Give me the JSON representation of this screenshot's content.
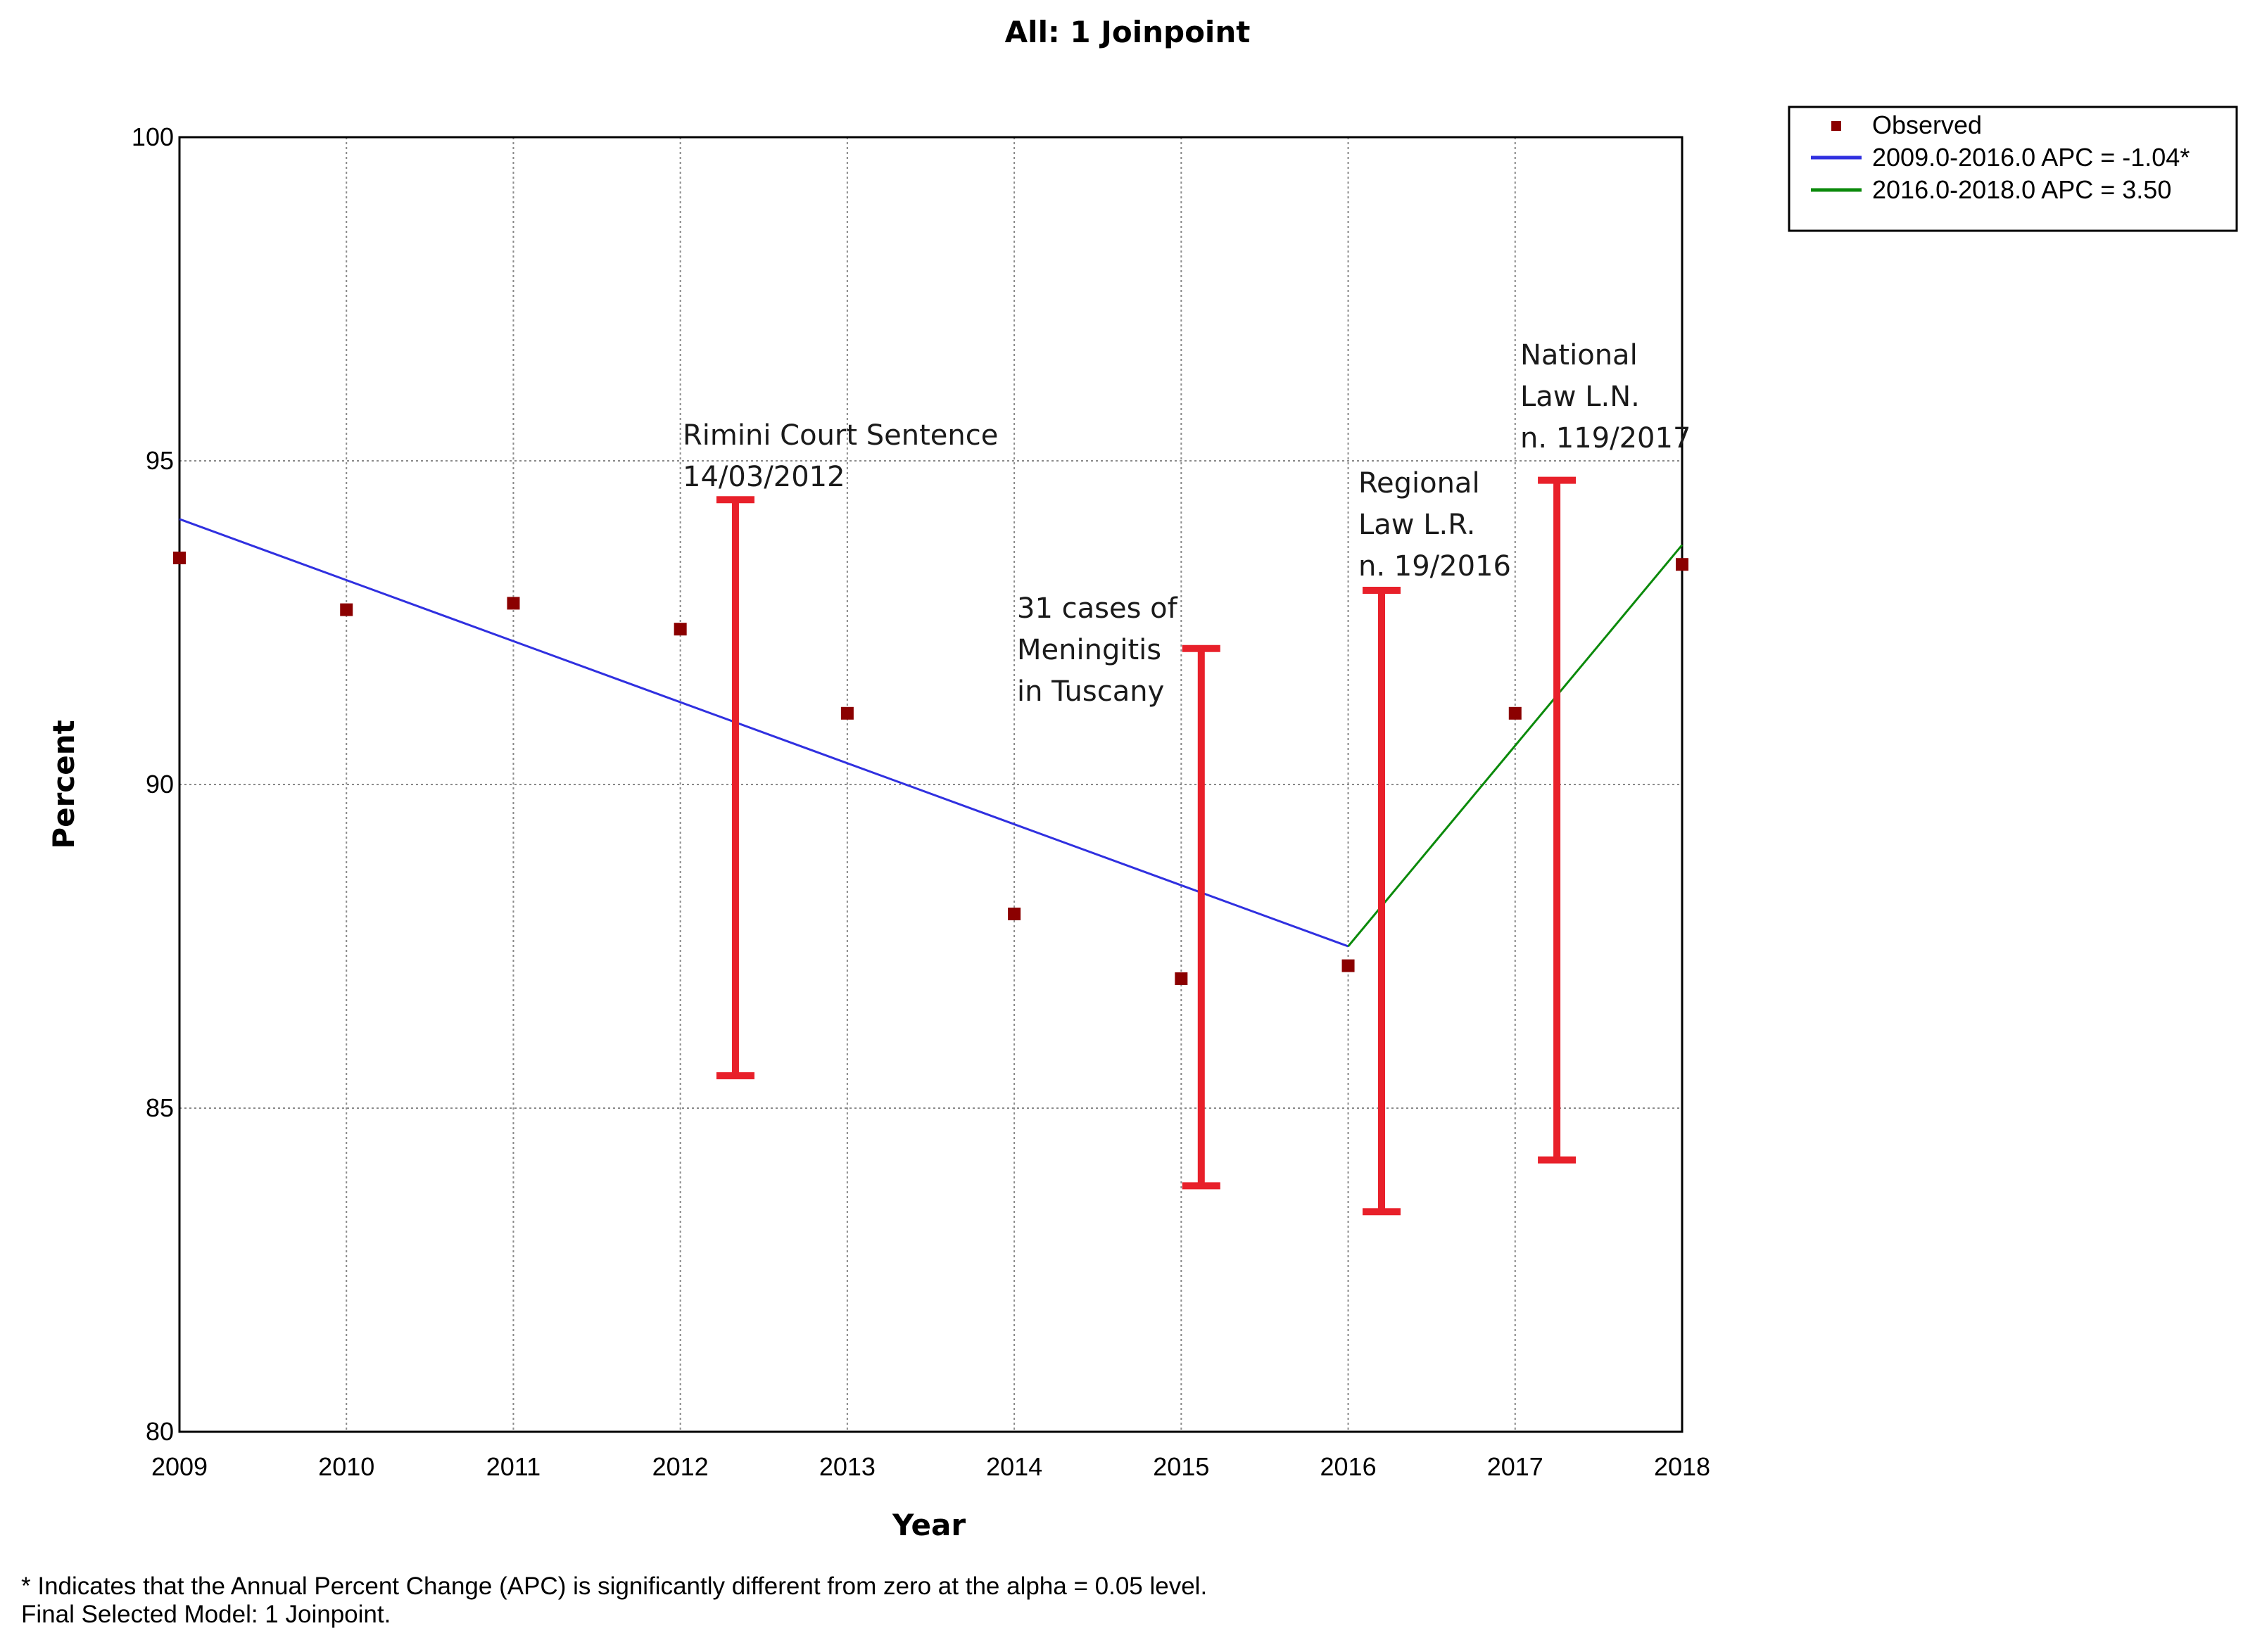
{
  "chart_data": {
    "type": "line",
    "title": "All: 1 Joinpoint",
    "xlabel": "Year",
    "ylabel": "Percent",
    "xlim": [
      2009,
      2018
    ],
    "ylim": [
      80,
      100
    ],
    "x_ticks": [
      "2009",
      "2010",
      "2011",
      "2012",
      "2013",
      "2014",
      "2015",
      "2016",
      "2017",
      "2018"
    ],
    "y_ticks": [
      "80",
      "85",
      "90",
      "95",
      "100"
    ],
    "grid": true,
    "legend_position": "outside-top-right",
    "series": [
      {
        "name": "Observed",
        "kind": "scatter",
        "color": "#8b0000",
        "x": [
          2009,
          2010,
          2011,
          2012,
          2013,
          2014,
          2015,
          2016,
          2017,
          2018
        ],
        "y": [
          93.5,
          92.7,
          92.8,
          92.4,
          91.1,
          88.0,
          87.0,
          87.2,
          91.1,
          93.4
        ]
      },
      {
        "name": "2009.0-2016.0 APC  = -1.04*",
        "kind": "line",
        "color": "#3030e0",
        "x": [
          2009,
          2016
        ],
        "y": [
          94.1,
          87.5
        ]
      },
      {
        "name": "2016.0-2018.0 APC  =  3.50",
        "kind": "line",
        "color": "#0b8a0b",
        "x": [
          2016,
          2018
        ],
        "y": [
          87.5,
          93.7
        ]
      }
    ],
    "event_markers": [
      {
        "x": 2012.33,
        "y_low": 85.5,
        "y_high": 94.4,
        "color": "#e8202a",
        "label": [
          "Rimini Court Sentence",
          "14/03/2012"
        ]
      },
      {
        "x": 2015.12,
        "y_low": 83.8,
        "y_high": 92.1,
        "color": "#e8202a",
        "label": [
          "31 cases of",
          "Meningitis",
          "in Tuscany"
        ]
      },
      {
        "x": 2016.2,
        "y_low": 83.4,
        "y_high": 93.0,
        "color": "#e8202a",
        "label": [
          "Regional",
          "Law L.R.",
          "n. 19/2016"
        ]
      },
      {
        "x": 2017.25,
        "y_low": 84.2,
        "y_high": 94.7,
        "color": "#e8202a",
        "label": [
          "National",
          "Law L.N.",
          "n. 119/2017"
        ]
      }
    ]
  },
  "footnote": {
    "line1": "* Indicates that the Annual Percent Change (APC) is significantly different from zero at the alpha = 0.05 level.",
    "line2": "Final Selected Model: 1 Joinpoint."
  }
}
